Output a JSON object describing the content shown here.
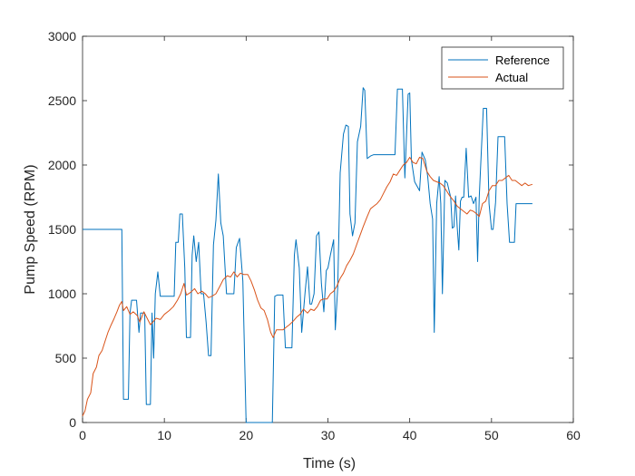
{
  "chart_data": {
    "type": "line",
    "title": "",
    "xlabel": "Time (s)",
    "ylabel": "Pump Speed (RPM)",
    "xlim": [
      0,
      60
    ],
    "ylim": [
      0,
      3000
    ],
    "xticks": [
      0,
      10,
      20,
      30,
      40,
      50,
      60
    ],
    "yticks": [
      0,
      500,
      1000,
      1500,
      2000,
      2500,
      3000
    ],
    "grid": false,
    "legend_position": "top-right",
    "series": [
      {
        "name": "Reference",
        "color": "#0072BD",
        "points": [
          [
            0,
            1500
          ],
          [
            4.8,
            1500
          ],
          [
            5.0,
            180
          ],
          [
            5.6,
            180
          ],
          [
            5.8,
            850
          ],
          [
            6.0,
            950
          ],
          [
            6.6,
            950
          ],
          [
            6.9,
            700
          ],
          [
            7.1,
            850
          ],
          [
            7.6,
            850
          ],
          [
            7.8,
            140
          ],
          [
            8.3,
            140
          ],
          [
            8.5,
            850
          ],
          [
            8.7,
            500
          ],
          [
            8.9,
            1000
          ],
          [
            9.2,
            1170
          ],
          [
            9.5,
            980
          ],
          [
            10.3,
            980
          ],
          [
            11.2,
            980
          ],
          [
            11.4,
            1400
          ],
          [
            11.7,
            1400
          ],
          [
            11.9,
            1620
          ],
          [
            12.2,
            1620
          ],
          [
            12.5,
            1200
          ],
          [
            12.7,
            660
          ],
          [
            13.2,
            660
          ],
          [
            13.4,
            1300
          ],
          [
            13.6,
            1450
          ],
          [
            13.9,
            1250
          ],
          [
            14.2,
            1400
          ],
          [
            14.5,
            1000
          ],
          [
            14.8,
            1000
          ],
          [
            15.1,
            780
          ],
          [
            15.4,
            520
          ],
          [
            15.7,
            520
          ],
          [
            16.0,
            1380
          ],
          [
            16.3,
            1570
          ],
          [
            16.6,
            1930
          ],
          [
            16.9,
            1550
          ],
          [
            17.2,
            1450
          ],
          [
            17.6,
            1000
          ],
          [
            18.1,
            1000
          ],
          [
            18.5,
            1000
          ],
          [
            18.8,
            1360
          ],
          [
            19.2,
            1430
          ],
          [
            19.6,
            1100
          ],
          [
            20.0,
            0
          ],
          [
            21.0,
            0
          ],
          [
            23.2,
            0
          ],
          [
            23.5,
            980
          ],
          [
            23.8,
            990
          ],
          [
            24.5,
            990
          ],
          [
            24.8,
            580
          ],
          [
            25.6,
            580
          ],
          [
            25.9,
            1300
          ],
          [
            26.1,
            1420
          ],
          [
            26.5,
            1200
          ],
          [
            26.8,
            700
          ],
          [
            27.2,
            1010
          ],
          [
            27.5,
            1210
          ],
          [
            27.8,
            920
          ],
          [
            28.0,
            920
          ],
          [
            28.3,
            1000
          ],
          [
            28.6,
            1450
          ],
          [
            28.9,
            1480
          ],
          [
            29.2,
            1080
          ],
          [
            29.5,
            860
          ],
          [
            29.8,
            1180
          ],
          [
            30.0,
            1200
          ],
          [
            30.3,
            1300
          ],
          [
            30.7,
            1420
          ],
          [
            30.9,
            720
          ],
          [
            31.2,
            1050
          ],
          [
            31.5,
            1940
          ],
          [
            31.9,
            2240
          ],
          [
            32.2,
            2310
          ],
          [
            32.5,
            2300
          ],
          [
            32.7,
            1620
          ],
          [
            33.0,
            1450
          ],
          [
            33.3,
            1550
          ],
          [
            33.6,
            2180
          ],
          [
            34.0,
            2300
          ],
          [
            34.3,
            2600
          ],
          [
            34.5,
            2580
          ],
          [
            34.8,
            2050
          ],
          [
            35.2,
            2070
          ],
          [
            35.6,
            2080
          ],
          [
            36.5,
            2080
          ],
          [
            38.2,
            2080
          ],
          [
            38.5,
            2590
          ],
          [
            39.1,
            2590
          ],
          [
            39.4,
            1900
          ],
          [
            39.8,
            2550
          ],
          [
            40.0,
            2560
          ],
          [
            40.2,
            2040
          ],
          [
            40.6,
            1870
          ],
          [
            41.2,
            1800
          ],
          [
            41.5,
            2100
          ],
          [
            41.9,
            2040
          ],
          [
            42.2,
            1910
          ],
          [
            42.5,
            1700
          ],
          [
            42.8,
            1580
          ],
          [
            43.0,
            700
          ],
          [
            43.3,
            1700
          ],
          [
            43.6,
            1910
          ],
          [
            43.8,
            1700
          ],
          [
            44.0,
            1000
          ],
          [
            44.3,
            1880
          ],
          [
            44.6,
            1860
          ],
          [
            45.0,
            1750
          ],
          [
            45.2,
            1510
          ],
          [
            45.4,
            1520
          ],
          [
            45.6,
            1760
          ],
          [
            45.8,
            1520
          ],
          [
            46.0,
            1340
          ],
          [
            46.2,
            1720
          ],
          [
            46.4,
            1750
          ],
          [
            46.6,
            1750
          ],
          [
            46.9,
            2130
          ],
          [
            47.2,
            1750
          ],
          [
            47.5,
            1760
          ],
          [
            47.8,
            1700
          ],
          [
            48.1,
            1750
          ],
          [
            48.3,
            1250
          ],
          [
            48.5,
            1750
          ],
          [
            48.7,
            2030
          ],
          [
            49.0,
            2440
          ],
          [
            49.4,
            2440
          ],
          [
            49.7,
            1700
          ],
          [
            50.0,
            1500
          ],
          [
            50.2,
            1500
          ],
          [
            50.5,
            1710
          ],
          [
            50.8,
            2220
          ],
          [
            51.6,
            2220
          ],
          [
            51.9,
            1700
          ],
          [
            52.2,
            1400
          ],
          [
            52.8,
            1400
          ],
          [
            53.0,
            1700
          ],
          [
            55.0,
            1700
          ]
        ]
      },
      {
        "name": "Actual",
        "color": "#D95319",
        "points": [
          [
            0,
            50
          ],
          [
            0.3,
            90
          ],
          [
            0.6,
            180
          ],
          [
            1.0,
            230
          ],
          [
            1.3,
            380
          ],
          [
            1.7,
            430
          ],
          [
            2.0,
            520
          ],
          [
            2.4,
            560
          ],
          [
            2.8,
            640
          ],
          [
            3.1,
            700
          ],
          [
            3.5,
            760
          ],
          [
            3.8,
            800
          ],
          [
            4.2,
            860
          ],
          [
            4.5,
            910
          ],
          [
            4.8,
            940
          ],
          [
            5.0,
            870
          ],
          [
            5.4,
            900
          ],
          [
            5.8,
            840
          ],
          [
            6.2,
            860
          ],
          [
            6.7,
            830
          ],
          [
            7.0,
            780
          ],
          [
            7.5,
            860
          ],
          [
            7.9,
            810
          ],
          [
            8.3,
            760
          ],
          [
            8.6,
            780
          ],
          [
            9.0,
            810
          ],
          [
            9.5,
            800
          ],
          [
            10.0,
            840
          ],
          [
            10.6,
            870
          ],
          [
            11.1,
            900
          ],
          [
            11.6,
            950
          ],
          [
            12.0,
            1000
          ],
          [
            12.4,
            1080
          ],
          [
            12.7,
            990
          ],
          [
            13.2,
            1010
          ],
          [
            13.7,
            1040
          ],
          [
            14.1,
            1000
          ],
          [
            14.6,
            1020
          ],
          [
            15.0,
            1000
          ],
          [
            15.4,
            970
          ],
          [
            15.8,
            980
          ],
          [
            16.3,
            1000
          ],
          [
            16.8,
            1060
          ],
          [
            17.2,
            1110
          ],
          [
            17.7,
            1140
          ],
          [
            18.1,
            1130
          ],
          [
            18.5,
            1170
          ],
          [
            18.9,
            1130
          ],
          [
            19.3,
            1160
          ],
          [
            19.7,
            1150
          ],
          [
            20.2,
            1150
          ],
          [
            20.6,
            1100
          ],
          [
            21.0,
            1030
          ],
          [
            21.4,
            950
          ],
          [
            21.8,
            890
          ],
          [
            22.2,
            870
          ],
          [
            22.6,
            800
          ],
          [
            23.0,
            700
          ],
          [
            23.3,
            660
          ],
          [
            23.7,
            720
          ],
          [
            24.1,
            720
          ],
          [
            24.5,
            720
          ],
          [
            24.9,
            740
          ],
          [
            25.3,
            760
          ],
          [
            25.8,
            790
          ],
          [
            26.2,
            820
          ],
          [
            26.6,
            840
          ],
          [
            27.0,
            880
          ],
          [
            27.5,
            850
          ],
          [
            27.9,
            880
          ],
          [
            28.3,
            870
          ],
          [
            28.7,
            900
          ],
          [
            29.1,
            950
          ],
          [
            29.5,
            960
          ],
          [
            29.9,
            960
          ],
          [
            30.3,
            1000
          ],
          [
            30.7,
            1020
          ],
          [
            31.1,
            1060
          ],
          [
            31.5,
            1120
          ],
          [
            31.9,
            1160
          ],
          [
            32.3,
            1220
          ],
          [
            32.7,
            1260
          ],
          [
            33.1,
            1310
          ],
          [
            33.5,
            1380
          ],
          [
            33.9,
            1450
          ],
          [
            34.3,
            1520
          ],
          [
            34.8,
            1600
          ],
          [
            35.2,
            1660
          ],
          [
            35.6,
            1680
          ],
          [
            36.0,
            1700
          ],
          [
            36.4,
            1730
          ],
          [
            36.8,
            1780
          ],
          [
            37.2,
            1830
          ],
          [
            37.6,
            1870
          ],
          [
            38.0,
            1930
          ],
          [
            38.4,
            1920
          ],
          [
            38.8,
            1960
          ],
          [
            39.2,
            2000
          ],
          [
            39.6,
            2020
          ],
          [
            40.0,
            2060
          ],
          [
            40.4,
            2020
          ],
          [
            40.8,
            2010
          ],
          [
            41.2,
            2060
          ],
          [
            41.6,
            2050
          ],
          [
            42.1,
            1950
          ],
          [
            42.5,
            1910
          ],
          [
            42.9,
            1880
          ],
          [
            43.3,
            1870
          ],
          [
            43.7,
            1860
          ],
          [
            44.1,
            1840
          ],
          [
            44.5,
            1800
          ],
          [
            44.9,
            1760
          ],
          [
            45.4,
            1720
          ],
          [
            45.8,
            1680
          ],
          [
            46.2,
            1660
          ],
          [
            46.6,
            1640
          ],
          [
            47.0,
            1620
          ],
          [
            47.4,
            1650
          ],
          [
            47.8,
            1640
          ],
          [
            48.2,
            1620
          ],
          [
            48.5,
            1600
          ],
          [
            48.9,
            1700
          ],
          [
            49.3,
            1720
          ],
          [
            49.7,
            1800
          ],
          [
            50.1,
            1840
          ],
          [
            50.5,
            1840
          ],
          [
            50.9,
            1880
          ],
          [
            51.3,
            1880
          ],
          [
            51.7,
            1900
          ],
          [
            52.1,
            1920
          ],
          [
            52.5,
            1880
          ],
          [
            52.9,
            1880
          ],
          [
            53.3,
            1860
          ],
          [
            53.7,
            1840
          ],
          [
            54.1,
            1860
          ],
          [
            54.5,
            1840
          ],
          [
            55.0,
            1850
          ]
        ]
      }
    ]
  }
}
